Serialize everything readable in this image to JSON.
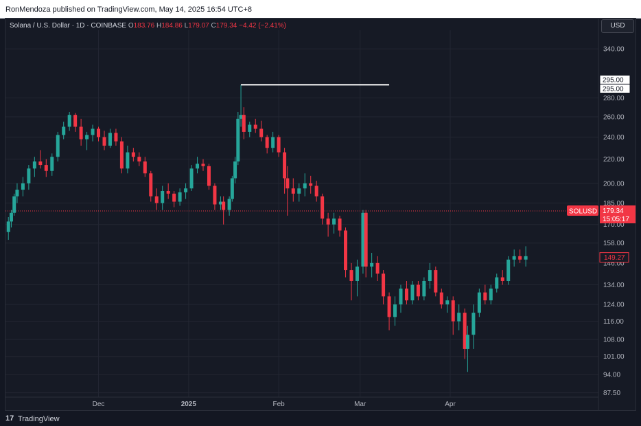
{
  "header": {
    "published_text": "RonMendoza published on TradingView.com, May 14, 2025 16:54 UTC+8"
  },
  "legend": {
    "symbol": "Solana / U.S. Dollar · 1D · COINBASE",
    "o_label": "O",
    "o_value": "183.76",
    "h_label": "H",
    "h_value": "184.86",
    "l_label": "L",
    "l_value": "179.07",
    "c_label": "C",
    "c_value": "179.34",
    "change": "−4.42 (−2.41%)"
  },
  "currency_button": "USD",
  "footer": {
    "brand": "TradingView",
    "logo": "17"
  },
  "colors": {
    "up": "#26a69a",
    "down": "#f23645",
    "background": "#161a25",
    "grid": "#232632",
    "axis_text": "#b2b5be",
    "line": "#ffffff"
  },
  "chart_data": {
    "type": "candlestick",
    "ylabel_ticks": [
      "340.00",
      "295.00",
      "280.00",
      "260.00",
      "240.00",
      "220.00",
      "200.00",
      "185.00",
      "170.00",
      "158.00",
      "146.00",
      "134.00",
      "124.00",
      "116.00",
      "108.00",
      "101.00",
      "94.00",
      "87.50"
    ],
    "y_tick_values": [
      340,
      280,
      260,
      240,
      220,
      200,
      185,
      170,
      158,
      146,
      134,
      124,
      116,
      108,
      101,
      94,
      87.5
    ],
    "x_ticks": [
      {
        "label": "Dec",
        "date": "2024-12-01"
      },
      {
        "label": "2025",
        "date": "2025-01-01"
      },
      {
        "label": "Feb",
        "date": "2025-02-01"
      },
      {
        "label": "Mar",
        "date": "2025-03-01"
      },
      {
        "label": "Apr",
        "date": "2025-04-01"
      }
    ],
    "scale": "log",
    "ylim": [
      86,
      360
    ],
    "xlim": [
      "2024-10-30",
      "2025-05-22"
    ],
    "horizontal_line": {
      "value": 295.0,
      "from": "2025-01-19",
      "to": "2025-03-11",
      "labels": [
        "295.00",
        "295.00"
      ]
    },
    "price_line": {
      "value": 179.34,
      "symbol": "SOLUSD",
      "price": "179.34",
      "countdown": "15:05:17"
    },
    "marker": {
      "value": 149.27,
      "label": "149.27"
    },
    "candles": [
      {
        "d": "2024-10-31",
        "o": 165,
        "h": 175,
        "l": 160,
        "c": 172
      },
      {
        "d": "2024-11-01",
        "o": 172,
        "h": 180,
        "l": 168,
        "c": 178
      },
      {
        "d": "2024-11-02",
        "o": 178,
        "h": 192,
        "l": 176,
        "c": 190
      },
      {
        "d": "2024-11-03",
        "o": 190,
        "h": 200,
        "l": 185,
        "c": 195
      },
      {
        "d": "2024-11-05",
        "o": 195,
        "h": 205,
        "l": 190,
        "c": 200
      },
      {
        "d": "2024-11-07",
        "o": 200,
        "h": 215,
        "l": 195,
        "c": 212
      },
      {
        "d": "2024-11-09",
        "o": 212,
        "h": 222,
        "l": 205,
        "c": 218
      },
      {
        "d": "2024-11-11",
        "o": 218,
        "h": 228,
        "l": 212,
        "c": 215
      },
      {
        "d": "2024-11-13",
        "o": 215,
        "h": 220,
        "l": 205,
        "c": 210
      },
      {
        "d": "2024-11-15",
        "o": 210,
        "h": 225,
        "l": 206,
        "c": 222
      },
      {
        "d": "2024-11-17",
        "o": 222,
        "h": 245,
        "l": 218,
        "c": 242
      },
      {
        "d": "2024-11-19",
        "o": 242,
        "h": 255,
        "l": 238,
        "c": 250
      },
      {
        "d": "2024-11-21",
        "o": 250,
        "h": 265,
        "l": 246,
        "c": 262
      },
      {
        "d": "2024-11-23",
        "o": 262,
        "h": 264,
        "l": 245,
        "c": 250
      },
      {
        "d": "2024-11-25",
        "o": 250,
        "h": 258,
        "l": 232,
        "c": 238
      },
      {
        "d": "2024-11-27",
        "o": 238,
        "h": 245,
        "l": 228,
        "c": 242
      },
      {
        "d": "2024-11-29",
        "o": 242,
        "h": 252,
        "l": 236,
        "c": 248
      },
      {
        "d": "2024-12-01",
        "o": 248,
        "h": 250,
        "l": 236,
        "c": 240
      },
      {
        "d": "2024-12-03",
        "o": 240,
        "h": 246,
        "l": 228,
        "c": 232
      },
      {
        "d": "2024-12-05",
        "o": 232,
        "h": 248,
        "l": 230,
        "c": 244
      },
      {
        "d": "2024-12-07",
        "o": 244,
        "h": 248,
        "l": 232,
        "c": 236
      },
      {
        "d": "2024-12-09",
        "o": 236,
        "h": 240,
        "l": 208,
        "c": 212
      },
      {
        "d": "2024-12-11",
        "o": 212,
        "h": 232,
        "l": 208,
        "c": 226
      },
      {
        "d": "2024-12-13",
        "o": 226,
        "h": 230,
        "l": 218,
        "c": 222
      },
      {
        "d": "2024-12-15",
        "o": 222,
        "h": 226,
        "l": 214,
        "c": 218
      },
      {
        "d": "2024-12-17",
        "o": 218,
        "h": 222,
        "l": 205,
        "c": 208
      },
      {
        "d": "2024-12-19",
        "o": 208,
        "h": 210,
        "l": 186,
        "c": 190
      },
      {
        "d": "2024-12-21",
        "o": 190,
        "h": 196,
        "l": 180,
        "c": 185
      },
      {
        "d": "2024-12-23",
        "o": 185,
        "h": 198,
        "l": 180,
        "c": 194
      },
      {
        "d": "2024-12-25",
        "o": 194,
        "h": 200,
        "l": 188,
        "c": 192
      },
      {
        "d": "2024-12-27",
        "o": 192,
        "h": 194,
        "l": 182,
        "c": 186
      },
      {
        "d": "2024-12-29",
        "o": 186,
        "h": 196,
        "l": 183,
        "c": 193
      },
      {
        "d": "2024-12-31",
        "o": 193,
        "h": 200,
        "l": 188,
        "c": 196
      },
      {
        "d": "2025-01-02",
        "o": 196,
        "h": 215,
        "l": 194,
        "c": 212
      },
      {
        "d": "2025-01-04",
        "o": 212,
        "h": 222,
        "l": 208,
        "c": 216
      },
      {
        "d": "2025-01-06",
        "o": 216,
        "h": 220,
        "l": 210,
        "c": 214
      },
      {
        "d": "2025-01-08",
        "o": 214,
        "h": 216,
        "l": 195,
        "c": 198
      },
      {
        "d": "2025-01-10",
        "o": 198,
        "h": 200,
        "l": 180,
        "c": 184
      },
      {
        "d": "2025-01-12",
        "o": 184,
        "h": 190,
        "l": 180,
        "c": 186
      },
      {
        "d": "2025-01-13",
        "o": 186,
        "h": 190,
        "l": 170,
        "c": 180
      },
      {
        "d": "2025-01-15",
        "o": 180,
        "h": 190,
        "l": 176,
        "c": 188
      },
      {
        "d": "2025-01-16",
        "o": 188,
        "h": 206,
        "l": 186,
        "c": 204
      },
      {
        "d": "2025-01-17",
        "o": 204,
        "h": 222,
        "l": 200,
        "c": 218
      },
      {
        "d": "2025-01-18",
        "o": 218,
        "h": 265,
        "l": 215,
        "c": 258
      },
      {
        "d": "2025-01-19",
        "o": 258,
        "h": 295,
        "l": 250,
        "c": 262
      },
      {
        "d": "2025-01-20",
        "o": 262,
        "h": 270,
        "l": 238,
        "c": 245
      },
      {
        "d": "2025-01-22",
        "o": 245,
        "h": 255,
        "l": 240,
        "c": 252
      },
      {
        "d": "2025-01-24",
        "o": 252,
        "h": 258,
        "l": 244,
        "c": 248
      },
      {
        "d": "2025-01-26",
        "o": 248,
        "h": 256,
        "l": 236,
        "c": 240
      },
      {
        "d": "2025-01-28",
        "o": 240,
        "h": 242,
        "l": 225,
        "c": 230
      },
      {
        "d": "2025-01-30",
        "o": 230,
        "h": 245,
        "l": 226,
        "c": 240
      },
      {
        "d": "2025-02-01",
        "o": 240,
        "h": 242,
        "l": 222,
        "c": 226
      },
      {
        "d": "2025-02-03",
        "o": 226,
        "h": 230,
        "l": 192,
        "c": 204
      },
      {
        "d": "2025-02-04",
        "o": 204,
        "h": 214,
        "l": 176,
        "c": 196
      },
      {
        "d": "2025-02-06",
        "o": 196,
        "h": 204,
        "l": 186,
        "c": 192
      },
      {
        "d": "2025-02-08",
        "o": 192,
        "h": 200,
        "l": 186,
        "c": 196
      },
      {
        "d": "2025-02-10",
        "o": 196,
        "h": 208,
        "l": 190,
        "c": 200
      },
      {
        "d": "2025-02-12",
        "o": 200,
        "h": 206,
        "l": 192,
        "c": 198
      },
      {
        "d": "2025-02-14",
        "o": 198,
        "h": 202,
        "l": 186,
        "c": 190
      },
      {
        "d": "2025-02-16",
        "o": 190,
        "h": 192,
        "l": 170,
        "c": 174
      },
      {
        "d": "2025-02-18",
        "o": 174,
        "h": 178,
        "l": 162,
        "c": 170
      },
      {
        "d": "2025-02-20",
        "o": 170,
        "h": 178,
        "l": 164,
        "c": 174
      },
      {
        "d": "2025-02-22",
        "o": 174,
        "h": 176,
        "l": 162,
        "c": 166
      },
      {
        "d": "2025-02-24",
        "o": 166,
        "h": 168,
        "l": 138,
        "c": 142
      },
      {
        "d": "2025-02-26",
        "o": 142,
        "h": 146,
        "l": 126,
        "c": 136
      },
      {
        "d": "2025-02-28",
        "o": 136,
        "h": 148,
        "l": 128,
        "c": 144
      },
      {
        "d": "2025-03-02",
        "o": 144,
        "h": 180,
        "l": 140,
        "c": 178
      },
      {
        "d": "2025-03-03",
        "o": 178,
        "h": 180,
        "l": 138,
        "c": 144
      },
      {
        "d": "2025-03-05",
        "o": 144,
        "h": 152,
        "l": 138,
        "c": 146
      },
      {
        "d": "2025-03-07",
        "o": 146,
        "h": 150,
        "l": 136,
        "c": 140
      },
      {
        "d": "2025-03-09",
        "o": 140,
        "h": 142,
        "l": 124,
        "c": 128
      },
      {
        "d": "2025-03-11",
        "o": 128,
        "h": 130,
        "l": 112,
        "c": 118
      },
      {
        "d": "2025-03-13",
        "o": 118,
        "h": 128,
        "l": 114,
        "c": 124
      },
      {
        "d": "2025-03-15",
        "o": 124,
        "h": 134,
        "l": 120,
        "c": 132
      },
      {
        "d": "2025-03-17",
        "o": 132,
        "h": 136,
        "l": 124,
        "c": 126
      },
      {
        "d": "2025-03-19",
        "o": 126,
        "h": 136,
        "l": 124,
        "c": 134
      },
      {
        "d": "2025-03-21",
        "o": 134,
        "h": 136,
        "l": 126,
        "c": 128
      },
      {
        "d": "2025-03-23",
        "o": 128,
        "h": 138,
        "l": 126,
        "c": 136
      },
      {
        "d": "2025-03-25",
        "o": 136,
        "h": 146,
        "l": 132,
        "c": 142
      },
      {
        "d": "2025-03-27",
        "o": 142,
        "h": 144,
        "l": 128,
        "c": 130
      },
      {
        "d": "2025-03-29",
        "o": 130,
        "h": 132,
        "l": 122,
        "c": 124
      },
      {
        "d": "2025-03-31",
        "o": 124,
        "h": 128,
        "l": 120,
        "c": 126
      },
      {
        "d": "2025-04-02",
        "o": 126,
        "h": 128,
        "l": 110,
        "c": 116
      },
      {
        "d": "2025-04-04",
        "o": 116,
        "h": 124,
        "l": 112,
        "c": 120
      },
      {
        "d": "2025-04-06",
        "o": 120,
        "h": 122,
        "l": 100,
        "c": 104
      },
      {
        "d": "2025-04-07",
        "o": 104,
        "h": 114,
        "l": 95,
        "c": 110
      },
      {
        "d": "2025-04-09",
        "o": 110,
        "h": 124,
        "l": 104,
        "c": 120
      },
      {
        "d": "2025-04-11",
        "o": 120,
        "h": 132,
        "l": 118,
        "c": 130
      },
      {
        "d": "2025-04-13",
        "o": 130,
        "h": 134,
        "l": 124,
        "c": 126
      },
      {
        "d": "2025-04-15",
        "o": 126,
        "h": 134,
        "l": 124,
        "c": 132
      },
      {
        "d": "2025-04-17",
        "o": 132,
        "h": 140,
        "l": 130,
        "c": 138
      },
      {
        "d": "2025-04-19",
        "o": 138,
        "h": 142,
        "l": 134,
        "c": 136
      },
      {
        "d": "2025-04-21",
        "o": 136,
        "h": 150,
        "l": 134,
        "c": 148
      },
      {
        "d": "2025-04-23",
        "o": 148,
        "h": 154,
        "l": 144,
        "c": 150
      },
      {
        "d": "2025-04-25",
        "o": 150,
        "h": 154,
        "l": 146,
        "c": 148
      },
      {
        "d": "2025-04-27",
        "o": 148,
        "h": 156,
        "l": 144,
        "c": 150
      }
    ]
  }
}
